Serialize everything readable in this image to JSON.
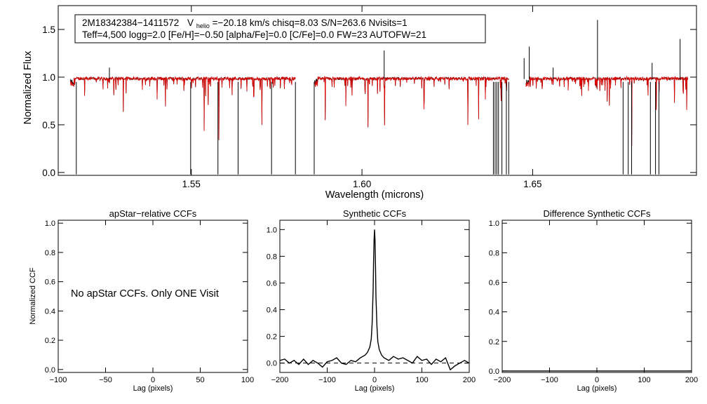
{
  "chart_data": [
    {
      "type": "line",
      "panel": "spectrum",
      "info_line1": {
        "star": "2M18342384−1411572",
        "vhelio_symbol": "V",
        "vhelio_sub": "helio",
        "rest": "=−20.18 km/s  chisq=8.03  S/N=263.6  Nvisits=1"
      },
      "info_line2": "Teff=4,500 logg=2.0 [Fe/H]=−0.50 [alpha/Fe]=0.0 [C/Fe]=0.0 FW=23 AUTOFW=21",
      "xlabel": "Wavelength (microns)",
      "ylabel": "Normalized Flux",
      "xlim": [
        1.511,
        1.698
      ],
      "ylim": [
        -0.03,
        1.75
      ],
      "xticks": [
        1.55,
        1.6,
        1.65
      ],
      "xtick_labels": [
        "1.55",
        "1.60",
        "1.65"
      ],
      "yticks": [
        0.0,
        0.5,
        1.0,
        1.5
      ],
      "ytick_labels": [
        "0.0",
        "0.5",
        "1.0",
        "1.5"
      ],
      "chip_ranges": [
        [
          1.5145,
          1.5805
        ],
        [
          1.586,
          1.643
        ],
        [
          1.648,
          1.6955
        ]
      ],
      "series": [
        {
          "color": "#000000",
          "width": 0.8
        },
        {
          "color": "#e00000",
          "width": 0.8
        }
      ],
      "spikes_to_zero": [
        1.5163,
        1.5498,
        1.5578,
        1.5637,
        1.5735,
        1.5805,
        1.586,
        1.6385,
        1.639,
        1.6395,
        1.64,
        1.641,
        1.6423,
        1.643,
        1.6765,
        1.678,
        1.679,
        1.6845,
        1.686,
        1.687
      ],
      "emission_lines": [
        [
          1.526,
          1.1
        ],
        [
          1.6065,
          1.28
        ],
        [
          1.649,
          1.32
        ],
        [
          1.669,
          1.6
        ],
        [
          1.6932,
          1.4
        ],
        [
          1.6475,
          1.2
        ],
        [
          1.656,
          1.1
        ],
        [
          1.685,
          1.15
        ]
      ]
    },
    {
      "type": "line",
      "panel": "apstar-ccf",
      "title": "apStar−relative CCFs",
      "xlabel": "Lag (pixels)",
      "ylabel": "Normalized CCF",
      "xlim": [
        -100,
        100
      ],
      "ylim": [
        -0.02,
        1.02
      ],
      "xticks": [
        -100,
        -50,
        0,
        50,
        100
      ],
      "xtick_labels": [
        "−100",
        "−50",
        "0",
        "50",
        "100"
      ],
      "yticks": [
        0.0,
        0.2,
        0.4,
        0.6,
        0.8,
        1.0
      ],
      "ytick_labels": [
        "0.0",
        "0.2",
        "0.4",
        "0.6",
        "0.8",
        "1.0"
      ],
      "note": "No apStar CCFs.  Only ONE Visit"
    },
    {
      "type": "line",
      "panel": "synthetic-ccf",
      "title": "Synthetic CCFs",
      "xlabel": "Lag (pixels)",
      "xlim": [
        -200,
        200
      ],
      "ylim": [
        -0.07,
        1.07
      ],
      "xticks": [
        -200,
        -100,
        0,
        100,
        200
      ],
      "xtick_labels": [
        "−200",
        "−100",
        "0",
        "100",
        "200"
      ],
      "yticks": [
        0.0,
        0.2,
        0.4,
        0.6,
        0.8,
        1.0
      ],
      "ytick_labels": [
        "0.0",
        "0.2",
        "0.4",
        "0.6",
        "0.8",
        "1.0"
      ],
      "zero_line": "dashed",
      "ccf": {
        "x": [
          -200,
          -190,
          -180,
          -170,
          -160,
          -150,
          -140,
          -130,
          -120,
          -110,
          -100,
          -90,
          -80,
          -70,
          -60,
          -50,
          -40,
          -30,
          -20,
          -15,
          -10,
          -7,
          -5,
          -3,
          -2,
          -1,
          0,
          1,
          2,
          3,
          5,
          7,
          10,
          15,
          20,
          30,
          40,
          50,
          60,
          70,
          80,
          90,
          100,
          110,
          120,
          130,
          140,
          150,
          160,
          170,
          180,
          190,
          200
        ],
        "y": [
          0.02,
          0.03,
          0.0,
          0.02,
          -0.01,
          0.03,
          -0.01,
          0.02,
          0.0,
          -0.03,
          0.01,
          0.02,
          0.04,
          0.0,
          -0.01,
          0.02,
          0.01,
          0.04,
          0.06,
          0.08,
          0.12,
          0.18,
          0.3,
          0.55,
          0.75,
          0.92,
          1.0,
          0.92,
          0.72,
          0.5,
          0.28,
          0.16,
          0.1,
          0.06,
          0.04,
          0.02,
          0.05,
          0.03,
          0.04,
          0.02,
          0.0,
          0.05,
          0.02,
          0.03,
          -0.01,
          0.03,
          0.01,
          0.04,
          -0.05,
          -0.02,
          0.0,
          0.02,
          0.0
        ]
      }
    },
    {
      "type": "line",
      "panel": "difference-ccf",
      "title": "Difference Synthetic CCFs",
      "xlabel": "Lag (pixels)",
      "xlim": [
        -200,
        200
      ],
      "ylim": [
        -0.01,
        1.02
      ],
      "xticks": [
        -200,
        -100,
        0,
        100,
        200
      ],
      "xtick_labels": [
        "−200",
        "−100",
        "0",
        "100",
        "200"
      ],
      "yticks": [
        0.0,
        0.2,
        0.4,
        0.6,
        0.8,
        1.0
      ],
      "ytick_labels": [
        "0.0",
        "0.2",
        "0.4",
        "0.6",
        "0.8",
        "1.0"
      ],
      "ccf": {
        "x": [
          -200,
          200
        ],
        "y": [
          0.0,
          0.0
        ]
      }
    }
  ]
}
